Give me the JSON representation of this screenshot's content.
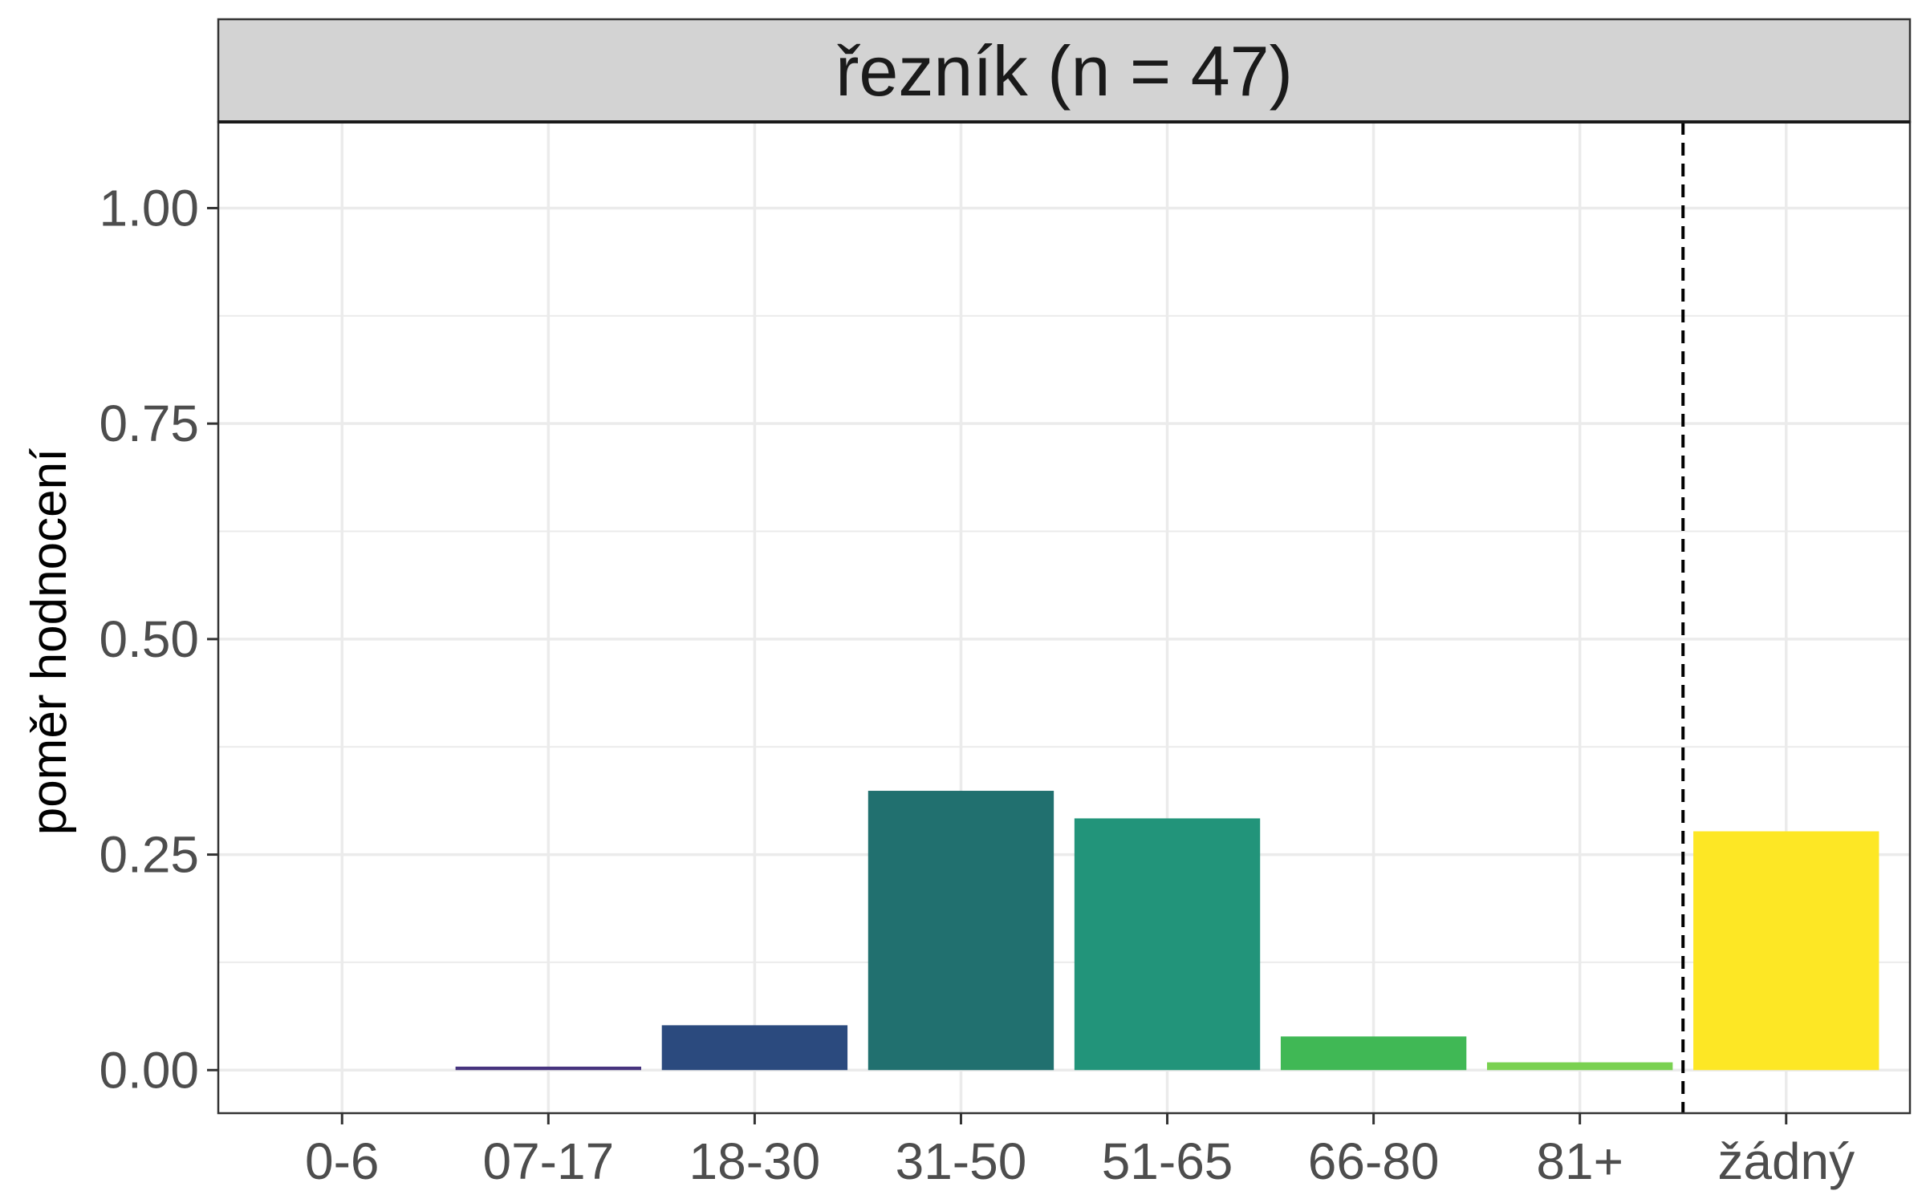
{
  "chart_data": {
    "type": "bar",
    "facet_title": "řezník (n = 47)",
    "xlabel": "",
    "ylabel": "poměr hodnocení",
    "ylim": [
      -0.05,
      1.1
    ],
    "yticks": [
      0,
      0.25,
      0.5,
      0.75,
      1.0
    ],
    "ytick_labels": [
      "0.00",
      "0.25",
      "0.50",
      "0.75",
      "1.00"
    ],
    "categories": [
      "0-6",
      "07-17",
      "18-30",
      "31-50",
      "51-65",
      "66-80",
      "81+",
      "žádný"
    ],
    "values": [
      0.0,
      0.004,
      0.052,
      0.324,
      0.292,
      0.039,
      0.009,
      0.277
    ],
    "colors": [
      "#440154",
      "#46337E",
      "#2B4A7E",
      "#21706F",
      "#22947A",
      "#40B855",
      "#7AD151",
      "#FDE725"
    ],
    "separator_after_index": 6,
    "grid": true,
    "legend": "none"
  }
}
